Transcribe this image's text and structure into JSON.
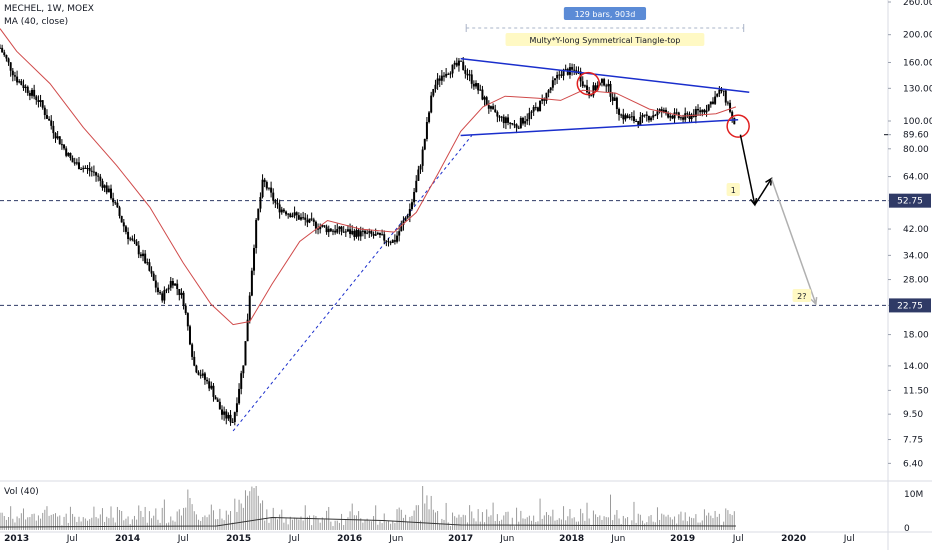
{
  "header": {
    "symbol": "MECHEL, 1W, MOEX",
    "indicator": "MA (40, close)"
  },
  "volume_pane": {
    "label": "Vol (40)",
    "ticks": [
      {
        "label": "10M",
        "value": 10
      },
      {
        "label": "0",
        "value": 0
      }
    ],
    "ma_fraction": 0.25
  },
  "measure": {
    "label": "129 bars, 903d",
    "bg": "#5b8bd6"
  },
  "pattern_label": {
    "text": "Multy*Y-long Symmetrical Tiangle-top",
    "bg": "#fff9c4"
  },
  "targets": [
    {
      "text": "1",
      "bg": "#fff9c4"
    },
    {
      "text": "2?",
      "bg": "#fff9c4"
    }
  ],
  "price_badges": [
    {
      "text": "52.75",
      "bg": "#2f3a66",
      "value": 52.75
    },
    {
      "text": "22.75",
      "bg": "#2f3a66",
      "value": 22.75
    }
  ],
  "current_price": {
    "text": "89.60",
    "value": 89.6
  },
  "colors": {
    "candle": "#000000",
    "ma": "#d04a4a",
    "triangle": "#1a2ecc",
    "trend_dashed": "#1a2ecc",
    "level_dashed": "#2f3a66",
    "circle": "#e02020",
    "arrow_primary": "#000000",
    "arrow_secondary": "#b0b0b0",
    "volume": "#9a9a9a"
  },
  "chart_data": {
    "type": "candlestick",
    "title": "MECHEL, 1W, MOEX",
    "y_scale": "log",
    "ylim": [
      5.6,
      260
    ],
    "y_ticks": [
      {
        "label": "260.00",
        "value": 260
      },
      {
        "label": "200.00",
        "value": 200
      },
      {
        "label": "160.00",
        "value": 160
      },
      {
        "label": "130.00",
        "value": 130
      },
      {
        "label": "100.00",
        "value": 100
      },
      {
        "label": "89.60",
        "value": 89.6
      },
      {
        "label": "80.00",
        "value": 80
      },
      {
        "label": "64.00",
        "value": 64
      },
      {
        "label": "52.75",
        "value": 52.75
      },
      {
        "label": "42.00",
        "value": 42
      },
      {
        "label": "34.00",
        "value": 34
      },
      {
        "label": "28.00",
        "value": 28
      },
      {
        "label": "22.75",
        "value": 22.75
      },
      {
        "label": "18.00",
        "value": 18
      },
      {
        "label": "14.00",
        "value": 14
      },
      {
        "label": "11.50",
        "value": 11.5
      },
      {
        "label": "9.50",
        "value": 9.5
      },
      {
        "label": "7.75",
        "value": 7.75
      },
      {
        "label": "6.40",
        "value": 6.4
      }
    ],
    "x_ticks": [
      {
        "label": "2013",
        "year": true
      },
      {
        "label": "Jul",
        "year": false
      },
      {
        "label": "2014",
        "year": true
      },
      {
        "label": "Jul",
        "year": false
      },
      {
        "label": "2015",
        "year": true
      },
      {
        "label": "Jul",
        "year": false
      },
      {
        "label": "2016",
        "year": true
      },
      {
        "label": "Jun",
        "year": false
      },
      {
        "label": "2017",
        "year": true
      },
      {
        "label": "Jun",
        "year": false
      },
      {
        "label": "2018",
        "year": true
      },
      {
        "label": "Jun",
        "year": false
      },
      {
        "label": "2019",
        "year": true
      },
      {
        "label": "Jul",
        "year": false
      },
      {
        "label": "2020",
        "year": true
      },
      {
        "label": "Jul",
        "year": false
      }
    ],
    "x_tick_dates": [
      2013.0,
      2013.5,
      2014.0,
      2014.5,
      2015.0,
      2015.5,
      2016.0,
      2016.42,
      2017.0,
      2017.42,
      2018.0,
      2018.42,
      2019.0,
      2019.5,
      2020.0,
      2020.5
    ],
    "xlim": [
      2012.85,
      2020.85
    ],
    "price_path": [
      [
        2012.85,
        180
      ],
      [
        2013.0,
        140
      ],
      [
        2013.2,
        118
      ],
      [
        2013.35,
        90
      ],
      [
        2013.5,
        72
      ],
      [
        2013.7,
        66
      ],
      [
        2013.85,
        55
      ],
      [
        2014.0,
        40
      ],
      [
        2014.15,
        33
      ],
      [
        2014.3,
        24
      ],
      [
        2014.4,
        28
      ],
      [
        2014.5,
        24
      ],
      [
        2014.6,
        14
      ],
      [
        2014.75,
        11.8
      ],
      [
        2014.85,
        9.5
      ],
      [
        2014.95,
        9.0
      ],
      [
        2015.05,
        15
      ],
      [
        2015.15,
        42
      ],
      [
        2015.22,
        62
      ],
      [
        2015.35,
        50
      ],
      [
        2015.5,
        47
      ],
      [
        2015.65,
        44
      ],
      [
        2015.8,
        42
      ],
      [
        2016.0,
        41
      ],
      [
        2016.2,
        40
      ],
      [
        2016.4,
        38
      ],
      [
        2016.55,
        50
      ],
      [
        2016.65,
        75
      ],
      [
        2016.75,
        130
      ],
      [
        2016.85,
        148
      ],
      [
        2017.0,
        158
      ],
      [
        2017.15,
        130
      ],
      [
        2017.3,
        105
      ],
      [
        2017.5,
        96
      ],
      [
        2017.7,
        112
      ],
      [
        2017.9,
        148
      ],
      [
        2018.05,
        150
      ],
      [
        2018.15,
        125
      ],
      [
        2018.3,
        138
      ],
      [
        2018.45,
        104
      ],
      [
        2018.6,
        100
      ],
      [
        2018.8,
        108
      ],
      [
        2019.0,
        102
      ],
      [
        2019.2,
        110
      ],
      [
        2019.35,
        128
      ],
      [
        2019.42,
        112
      ],
      [
        2019.48,
        89.6
      ]
    ],
    "ma40_path": [
      [
        2012.85,
        210
      ],
      [
        2013.0,
        175
      ],
      [
        2013.3,
        135
      ],
      [
        2013.6,
        95
      ],
      [
        2013.9,
        70
      ],
      [
        2014.2,
        50
      ],
      [
        2014.5,
        32
      ],
      [
        2014.75,
        23
      ],
      [
        2014.95,
        19.5
      ],
      [
        2015.1,
        20
      ],
      [
        2015.3,
        27
      ],
      [
        2015.55,
        38
      ],
      [
        2015.8,
        45
      ],
      [
        2016.1,
        42
      ],
      [
        2016.4,
        41
      ],
      [
        2016.6,
        48
      ],
      [
        2016.8,
        66
      ],
      [
        2017.0,
        92
      ],
      [
        2017.2,
        112
      ],
      [
        2017.4,
        122
      ],
      [
        2017.7,
        120
      ],
      [
        2017.9,
        118
      ],
      [
        2018.1,
        128
      ],
      [
        2018.4,
        125
      ],
      [
        2018.7,
        110
      ],
      [
        2019.0,
        104
      ],
      [
        2019.3,
        106
      ],
      [
        2019.48,
        112
      ]
    ],
    "annotations": {
      "triangle_upper": [
        [
          2017.0,
          165
        ],
        [
          2019.6,
          126
        ]
      ],
      "triangle_lower": [
        [
          2017.0,
          89
        ],
        [
          2019.5,
          101
        ]
      ],
      "trendline_dashed": [
        [
          2014.95,
          8.3
        ],
        [
          2017.1,
          89
        ]
      ],
      "level_1": 52.75,
      "level_2": 22.75,
      "arrow_primary": [
        [
          2019.52,
          89.6
        ],
        [
          2019.65,
          51
        ],
        [
          2019.8,
          63
        ]
      ],
      "arrow_secondary": [
        [
          2019.8,
          63
        ],
        [
          2020.2,
          23
        ]
      ],
      "circles": [
        [
          2018.15,
          135
        ],
        [
          2019.5,
          96
        ]
      ]
    }
  }
}
